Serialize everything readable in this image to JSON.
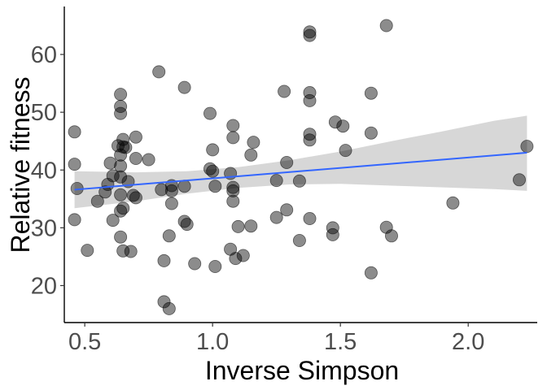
{
  "chart_data": {
    "type": "scatter",
    "title": "",
    "xlabel": "Inverse Simpson",
    "ylabel": "Relative fitness",
    "xlim": [
      0.42,
      2.27
    ],
    "ylim": [
      13.6,
      68.3
    ],
    "x_ticks": [
      0.5,
      1.0,
      1.5,
      2.0
    ],
    "x_tick_labels": [
      "0.5",
      "1.0",
      "1.5",
      "2.0"
    ],
    "y_ticks": [
      20,
      30,
      40,
      50,
      60
    ],
    "y_tick_labels": [
      "20",
      "30",
      "40",
      "50",
      "60"
    ],
    "grid": false,
    "legend": "none",
    "point_color": "#000000",
    "point_opacity": 0.45,
    "trend_color": "#3366FF",
    "ribbon_color": "#D3D3D3",
    "points": [
      {
        "x": 0.46,
        "y": 46.6
      },
      {
        "x": 0.46,
        "y": 41.0
      },
      {
        "x": 0.47,
        "y": 36.8
      },
      {
        "x": 0.46,
        "y": 31.4
      },
      {
        "x": 0.51,
        "y": 26.1
      },
      {
        "x": 0.55,
        "y": 34.6
      },
      {
        "x": 0.58,
        "y": 36.2
      },
      {
        "x": 0.59,
        "y": 37.5
      },
      {
        "x": 0.6,
        "y": 41.2
      },
      {
        "x": 0.61,
        "y": 39.0
      },
      {
        "x": 0.61,
        "y": 31.3
      },
      {
        "x": 0.63,
        "y": 44.2
      },
      {
        "x": 0.64,
        "y": 53.1
      },
      {
        "x": 0.64,
        "y": 51.0
      },
      {
        "x": 0.64,
        "y": 49.8
      },
      {
        "x": 0.64,
        "y": 42.6
      },
      {
        "x": 0.64,
        "y": 40.7
      },
      {
        "x": 0.64,
        "y": 38.8
      },
      {
        "x": 0.64,
        "y": 35.7
      },
      {
        "x": 0.64,
        "y": 32.9
      },
      {
        "x": 0.64,
        "y": 28.4
      },
      {
        "x": 0.65,
        "y": 45.3
      },
      {
        "x": 0.65,
        "y": 44.0
      },
      {
        "x": 0.65,
        "y": 33.4
      },
      {
        "x": 0.66,
        "y": 43.9
      },
      {
        "x": 0.65,
        "y": 26.0
      },
      {
        "x": 0.67,
        "y": 38.0
      },
      {
        "x": 0.68,
        "y": 25.9
      },
      {
        "x": 0.69,
        "y": 35.6
      },
      {
        "x": 0.7,
        "y": 45.7
      },
      {
        "x": 0.7,
        "y": 42.0
      },
      {
        "x": 0.7,
        "y": 35.2
      },
      {
        "x": 0.75,
        "y": 41.8
      },
      {
        "x": 0.79,
        "y": 57.0
      },
      {
        "x": 0.8,
        "y": 36.6
      },
      {
        "x": 0.81,
        "y": 24.3
      },
      {
        "x": 0.81,
        "y": 17.2
      },
      {
        "x": 0.83,
        "y": 16.0
      },
      {
        "x": 0.83,
        "y": 28.6
      },
      {
        "x": 0.84,
        "y": 37.3
      },
      {
        "x": 0.84,
        "y": 36.4
      },
      {
        "x": 0.84,
        "y": 34.2
      },
      {
        "x": 0.89,
        "y": 54.3
      },
      {
        "x": 0.89,
        "y": 37.2
      },
      {
        "x": 0.89,
        "y": 31.1
      },
      {
        "x": 0.9,
        "y": 30.6
      },
      {
        "x": 0.93,
        "y": 23.8
      },
      {
        "x": 0.99,
        "y": 49.8
      },
      {
        "x": 0.99,
        "y": 40.2
      },
      {
        "x": 1.0,
        "y": 39.8
      },
      {
        "x": 1.0,
        "y": 43.5
      },
      {
        "x": 1.01,
        "y": 37.2
      },
      {
        "x": 1.01,
        "y": 23.3
      },
      {
        "x": 1.08,
        "y": 47.7
      },
      {
        "x": 1.08,
        "y": 45.6
      },
      {
        "x": 1.07,
        "y": 39.4
      },
      {
        "x": 1.08,
        "y": 37.0
      },
      {
        "x": 1.08,
        "y": 36.4
      },
      {
        "x": 1.08,
        "y": 34.6
      },
      {
        "x": 1.07,
        "y": 26.3
      },
      {
        "x": 1.09,
        "y": 24.7
      },
      {
        "x": 1.1,
        "y": 30.2
      },
      {
        "x": 1.12,
        "y": 25.2
      },
      {
        "x": 1.16,
        "y": 44.8
      },
      {
        "x": 1.15,
        "y": 42.6
      },
      {
        "x": 1.15,
        "y": 30.3
      },
      {
        "x": 1.25,
        "y": 38.2
      },
      {
        "x": 1.25,
        "y": 31.8
      },
      {
        "x": 1.28,
        "y": 53.6
      },
      {
        "x": 1.29,
        "y": 41.3
      },
      {
        "x": 1.29,
        "y": 33.1
      },
      {
        "x": 1.34,
        "y": 38.1
      },
      {
        "x": 1.34,
        "y": 27.8
      },
      {
        "x": 1.38,
        "y": 63.9
      },
      {
        "x": 1.38,
        "y": 63.3
      },
      {
        "x": 1.38,
        "y": 53.4
      },
      {
        "x": 1.38,
        "y": 52.0
      },
      {
        "x": 1.38,
        "y": 46.2
      },
      {
        "x": 1.38,
        "y": 45.2
      },
      {
        "x": 1.38,
        "y": 31.6
      },
      {
        "x": 1.47,
        "y": 30.0
      },
      {
        "x": 1.47,
        "y": 28.8
      },
      {
        "x": 1.48,
        "y": 48.3
      },
      {
        "x": 1.51,
        "y": 47.6
      },
      {
        "x": 1.52,
        "y": 43.4
      },
      {
        "x": 1.62,
        "y": 53.3
      },
      {
        "x": 1.62,
        "y": 46.4
      },
      {
        "x": 1.62,
        "y": 22.2
      },
      {
        "x": 1.68,
        "y": 65.0
      },
      {
        "x": 1.68,
        "y": 30.1
      },
      {
        "x": 1.7,
        "y": 28.6
      },
      {
        "x": 1.94,
        "y": 34.3
      },
      {
        "x": 2.2,
        "y": 38.3
      },
      {
        "x": 2.23,
        "y": 44.1
      }
    ],
    "trend_line": {
      "x": [
        0.46,
        2.23
      ],
      "y": [
        36.6,
        43.0
      ]
    },
    "confidence_band": [
      {
        "x": 0.46,
        "lower": 33.4,
        "upper": 39.8
      },
      {
        "x": 0.7,
        "lower": 34.6,
        "upper": 39.6
      },
      {
        "x": 0.9,
        "lower": 35.9,
        "upper": 39.8
      },
      {
        "x": 1.1,
        "lower": 36.9,
        "upper": 40.5
      },
      {
        "x": 1.3,
        "lower": 37.5,
        "upper": 41.7
      },
      {
        "x": 1.5,
        "lower": 37.6,
        "upper": 43.2
      },
      {
        "x": 1.7,
        "lower": 37.3,
        "upper": 45.0
      },
      {
        "x": 1.9,
        "lower": 37.0,
        "upper": 46.7
      },
      {
        "x": 2.1,
        "lower": 36.7,
        "upper": 48.5
      },
      {
        "x": 2.23,
        "lower": 36.4,
        "upper": 49.4
      }
    ]
  }
}
